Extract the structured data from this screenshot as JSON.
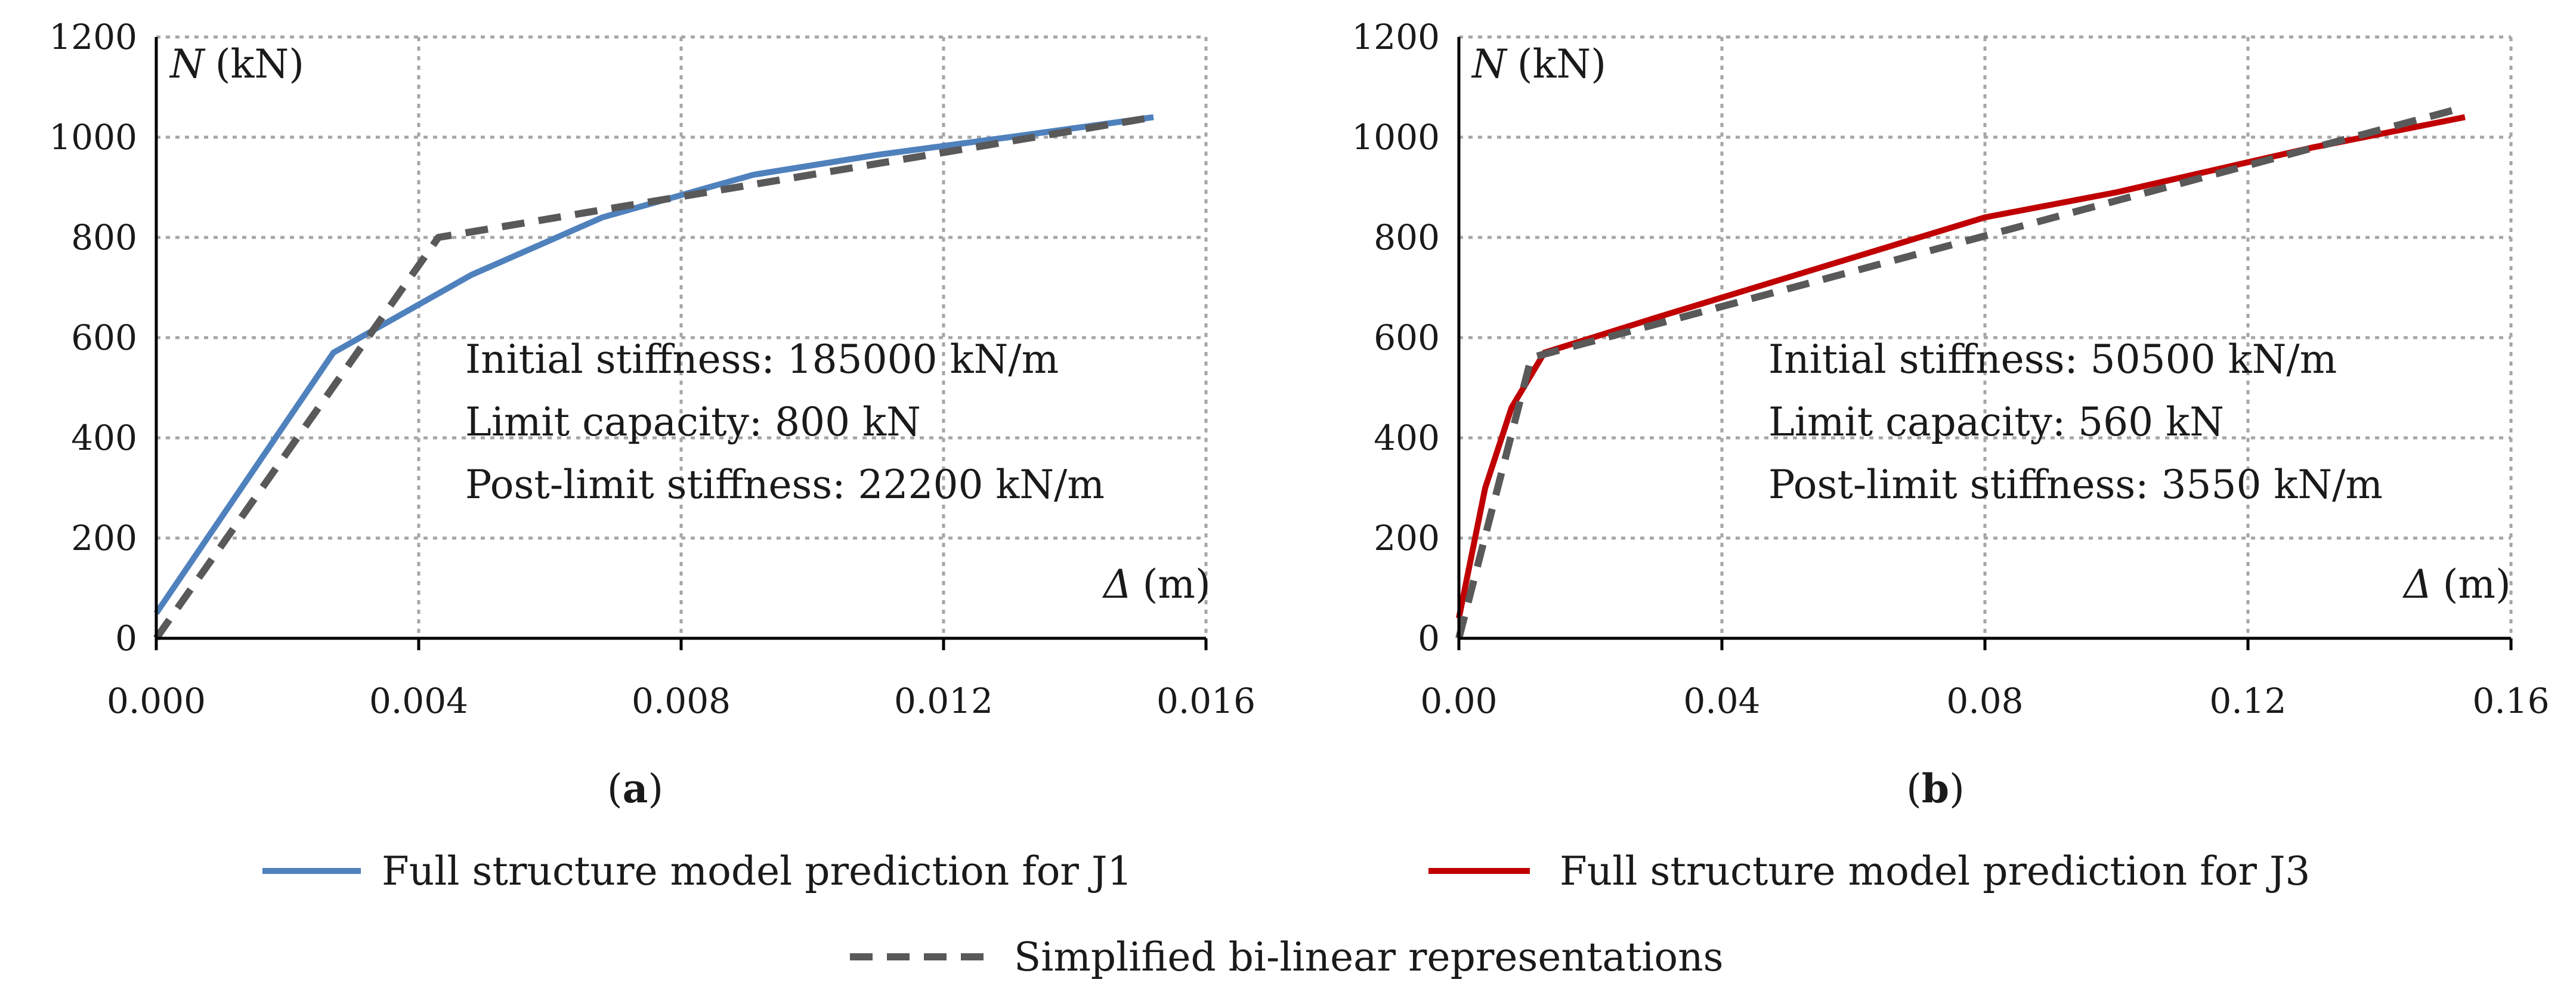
{
  "chart_data": [
    {
      "type": "line",
      "panel_label": "a",
      "xlabel_symbol": "Δ",
      "xlabel_unit": "(m)",
      "ylabel_symbol": "N",
      "ylabel_unit": "(kN)",
      "xlim": [
        0,
        0.016
      ],
      "ylim": [
        0,
        1200
      ],
      "x_ticks": [
        "0.000",
        "0.004",
        "0.008",
        "0.012",
        "0.016"
      ],
      "y_ticks": [
        "0",
        "200",
        "400",
        "600",
        "800",
        "1000",
        "1200"
      ],
      "grid": true,
      "annotations": [
        "Initial stiffness: 185000 kN/m",
        "Limit capacity: 800 kN",
        "Post-limit stiffness: 22200 kN/m"
      ],
      "series": [
        {
          "name": "Full structure model prediction for J1",
          "color": "#4f81bd",
          "style": "solid",
          "x": [
            0.0,
            0.0027,
            0.0048,
            0.0068,
            0.0091,
            0.011,
            0.013,
            0.0152
          ],
          "y": [
            50,
            570,
            725,
            840,
            925,
            965,
            1000,
            1040
          ]
        },
        {
          "name": "Simplified bi-linear representations",
          "color": "#595959",
          "style": "dashed",
          "x": [
            0.0,
            0.0043,
            0.0152
          ],
          "y": [
            0,
            800,
            1040
          ]
        }
      ]
    },
    {
      "type": "line",
      "panel_label": "b",
      "xlabel_symbol": "Δ",
      "xlabel_unit": "(m)",
      "ylabel_symbol": "N",
      "ylabel_unit": "(kN)",
      "xlim": [
        0,
        0.16
      ],
      "ylim": [
        0,
        1200
      ],
      "x_ticks": [
        "0.00",
        "0.04",
        "0.08",
        "0.12",
        "0.16"
      ],
      "y_ticks": [
        "0",
        "200",
        "400",
        "600",
        "800",
        "1000",
        "1200"
      ],
      "grid": true,
      "annotations": [
        "Initial stiffness: 50500 kN/m",
        "Limit capacity: 560 kN",
        "Post-limit stiffness: 3550 kN/m"
      ],
      "series": [
        {
          "name": "Full structure model prediction for J3",
          "color": "#c00000",
          "style": "solid",
          "x": [
            0.0,
            0.004,
            0.008,
            0.013,
            0.03,
            0.055,
            0.08,
            0.1,
            0.13,
            0.153
          ],
          "y": [
            40,
            300,
            460,
            570,
            640,
            740,
            840,
            890,
            980,
            1040
          ]
        },
        {
          "name": "Simplified bi-linear representations",
          "color": "#595959",
          "style": "dashed",
          "x": [
            0.0,
            0.011,
            0.153
          ],
          "y": [
            0,
            560,
            1060
          ]
        }
      ]
    }
  ],
  "legend": {
    "items": [
      {
        "label": "Full structure model prediction for J1",
        "color": "#4f81bd",
        "style": "solid"
      },
      {
        "label": "Full structure model prediction for J3",
        "color": "#c00000",
        "style": "solid"
      },
      {
        "label": "Simplified bi-linear representations",
        "color": "#595959",
        "style": "dashed"
      }
    ]
  }
}
